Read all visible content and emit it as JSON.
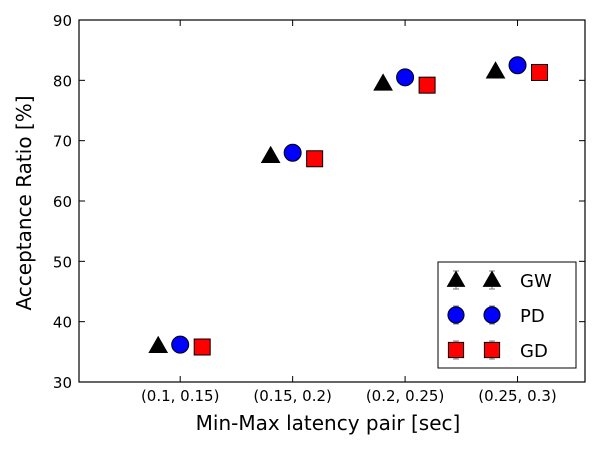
{
  "chart_data": {
    "type": "scatter",
    "xlabel": "Min-Max latency pair [sec]",
    "ylabel": "Acceptance Ratio [%]",
    "categories": [
      "(0.1, 0.15)",
      "(0.15, 0.2)",
      "(0.2, 0.25)",
      "(0.25, 0.3)"
    ],
    "ylim": [
      30,
      90
    ],
    "yticks": [
      30,
      40,
      50,
      60,
      70,
      80,
      90
    ],
    "grid": false,
    "legend_position": "lower-right",
    "series": [
      {
        "name": "GW",
        "marker": "triangle",
        "color": "#000000",
        "values": [
          36.0,
          67.5,
          79.5,
          81.5
        ],
        "errors": [
          0.3,
          0.3,
          0.3,
          0.3
        ]
      },
      {
        "name": "PD",
        "marker": "circle",
        "color": "#0000ff",
        "values": [
          36.2,
          68.0,
          80.5,
          82.5
        ],
        "errors": [
          0.3,
          0.3,
          0.3,
          0.3
        ]
      },
      {
        "name": "GD",
        "marker": "square",
        "color": "#ff0000",
        "values": [
          35.8,
          67.0,
          79.2,
          81.3
        ],
        "errors": [
          0.3,
          0.3,
          0.3,
          0.3
        ]
      }
    ]
  }
}
